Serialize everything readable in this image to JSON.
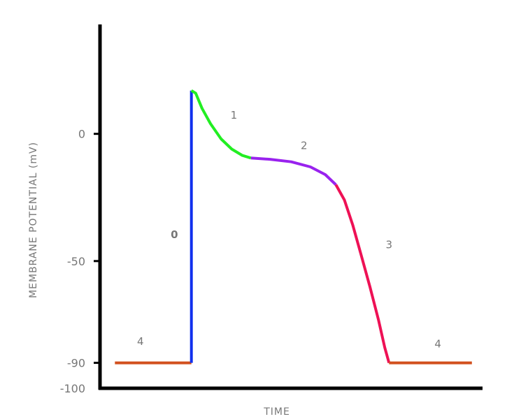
{
  "chart_data": {
    "type": "line",
    "xlabel": "TIME",
    "ylabel": "MEMBRANE POTENTIAL (mV)",
    "ylim": [
      -100,
      43
    ],
    "y_ticks": [
      {
        "value": 0,
        "label": "0"
      },
      {
        "value": -50,
        "label": "-50"
      },
      {
        "value": -90,
        "label": "-90"
      },
      {
        "value": -100,
        "label": "-100"
      }
    ],
    "grid": false,
    "series": [
      {
        "phase": "4",
        "color": "#d2501e",
        "points": [
          [
            7,
            -90
          ],
          [
            43,
            -90
          ]
        ]
      },
      {
        "phase": "0",
        "color": "#1030ee",
        "points": [
          [
            43,
            -90
          ],
          [
            43,
            17
          ]
        ]
      },
      {
        "phase": "1",
        "color": "#22ee22",
        "points": [
          [
            43,
            17
          ],
          [
            45,
            16
          ],
          [
            48,
            10
          ],
          [
            52,
            4
          ],
          [
            57,
            -2
          ],
          [
            62,
            -6
          ],
          [
            67,
            -8.5
          ],
          [
            71,
            -9.5
          ]
        ]
      },
      {
        "phase": "2",
        "color": "#9922ee",
        "points": [
          [
            71,
            -9.5
          ],
          [
            80,
            -10
          ],
          [
            90,
            -11
          ],
          [
            99,
            -13
          ],
          [
            106,
            -16
          ],
          [
            111,
            -20
          ]
        ]
      },
      {
        "phase": "3",
        "color": "#ee1155",
        "points": [
          [
            111,
            -20
          ],
          [
            115,
            -26
          ],
          [
            119,
            -36
          ],
          [
            123,
            -48
          ],
          [
            127,
            -60
          ],
          [
            131,
            -73
          ],
          [
            134,
            -84
          ],
          [
            136,
            -90
          ]
        ]
      },
      {
        "phase": "4",
        "color": "#d2501e",
        "points": [
          [
            136,
            -90
          ],
          [
            175,
            -90
          ]
        ]
      }
    ],
    "annotations": [
      {
        "text": "0",
        "x": 35,
        "y": -41
      },
      {
        "text": "1",
        "x": 63,
        "y": 6
      },
      {
        "text": "2",
        "x": 96,
        "y": -6
      },
      {
        "text": "3",
        "x": 136,
        "y": -45
      },
      {
        "text": "4",
        "x": 19,
        "y": -83
      },
      {
        "text": "4",
        "x": 159,
        "y": -84
      }
    ]
  }
}
